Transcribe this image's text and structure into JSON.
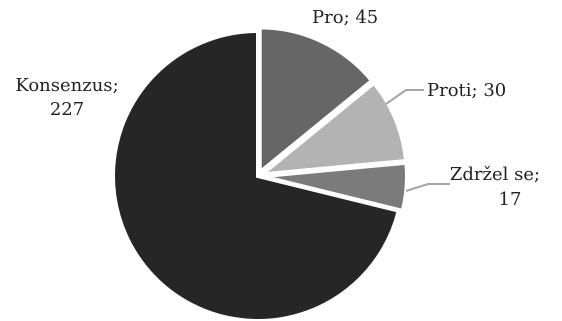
{
  "chart_data": {
    "type": "pie",
    "title": "",
    "labels": [
      "Pro",
      "Proti",
      "Zdržel se",
      "Konsenzus"
    ],
    "values": [
      45,
      30,
      17,
      227
    ],
    "colors": [
      "#666666",
      "#b3b3b3",
      "#7b7b7b",
      "#262626"
    ],
    "start_angle_deg": 0,
    "direction": "clockwise",
    "legend": "none",
    "data_labels": {
      "pro": {
        "name": "Pro",
        "value": "45"
      },
      "proti": {
        "name": "Proti",
        "value": "30"
      },
      "zdrzel": {
        "name": "Zdržel se",
        "value": "17"
      },
      "konsenzus": {
        "name": "Konsenzus",
        "value": "227"
      }
    }
  }
}
